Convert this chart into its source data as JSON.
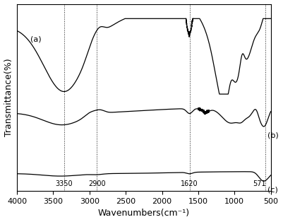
{
  "title": "",
  "xlabel": "Wavenumbers(cm⁻¹)",
  "ylabel": "Transmittance(%)",
  "xmin": 500,
  "xmax": 4000,
  "labels": [
    "(a)",
    "(b)",
    "(c)"
  ],
  "vlines": [
    3350,
    2900,
    1620,
    571
  ],
  "vline_labels": [
    "3350",
    "2900",
    "1620",
    "571"
  ],
  "xticks": [
    4000,
    3500,
    3000,
    2500,
    2000,
    1500,
    1000,
    500
  ],
  "background_color": "#ffffff",
  "line_color": "#000000"
}
